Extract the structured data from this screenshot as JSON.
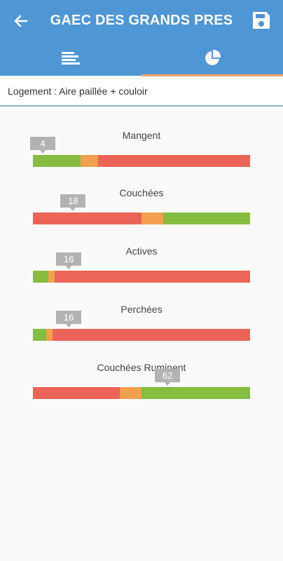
{
  "app": {
    "title": "GAEC DES GRANDS PRES",
    "back_icon": "arrow-left-icon",
    "save_icon": "floppy-disk-icon",
    "colors": {
      "appbar": "#4f96d4",
      "tab_indicator": "#f2a35e",
      "green": "#86bc3f",
      "orange": "#f2a04e",
      "red": "#ec6457"
    }
  },
  "tabs": [
    {
      "icon": "list-icon",
      "active": false
    },
    {
      "icon": "pie-chart-icon",
      "active": true
    }
  ],
  "subheader": {
    "text": "Logement : Aire paillée + couloir"
  },
  "metrics": [
    {
      "label": "Mangent",
      "value": "4",
      "segments": [
        {
          "color": "green",
          "width": 0.22
        },
        {
          "color": "orange",
          "width": 0.08
        },
        {
          "color": "red",
          "width": 0.7
        }
      ],
      "marker_position": 0.045
    },
    {
      "label": "Couchées",
      "value": "18",
      "segments": [
        {
          "color": "red",
          "width": 0.5
        },
        {
          "color": "orange",
          "width": 0.1
        },
        {
          "color": "green",
          "width": 0.4
        }
      ],
      "marker_position": 0.185
    },
    {
      "label": "Actives",
      "value": "16",
      "segments": [
        {
          "color": "green",
          "width": 0.07
        },
        {
          "color": "orange",
          "width": 0.03
        },
        {
          "color": "red",
          "width": 0.9
        }
      ],
      "marker_position": 0.165
    },
    {
      "label": "Perchées",
      "value": "16",
      "segments": [
        {
          "color": "green",
          "width": 0.06
        },
        {
          "color": "orange",
          "width": 0.03
        },
        {
          "color": "red",
          "width": 0.91
        }
      ],
      "marker_position": 0.165
    },
    {
      "label": "Couchées Ruminent",
      "value": "62",
      "segments": [
        {
          "color": "red",
          "width": 0.4
        },
        {
          "color": "orange",
          "width": 0.1
        },
        {
          "color": "green",
          "width": 0.5
        }
      ],
      "marker_position": 0.62
    }
  ]
}
